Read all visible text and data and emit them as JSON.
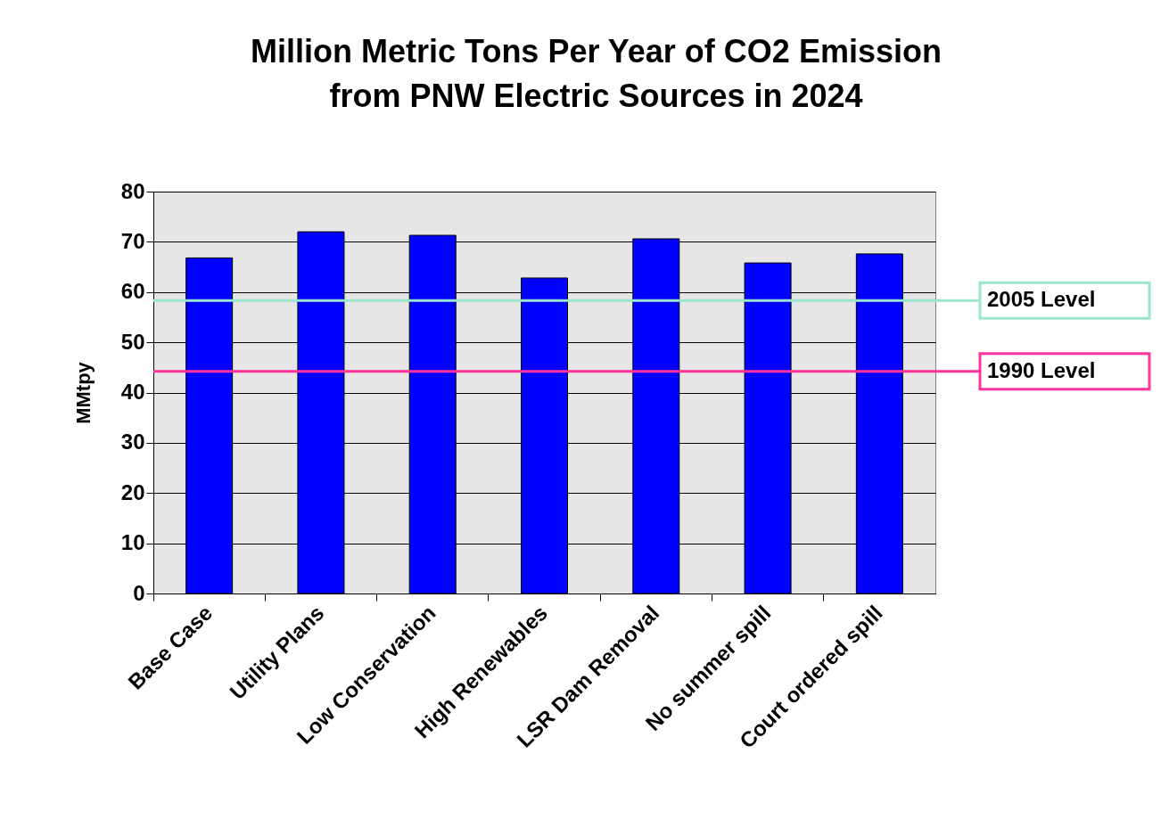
{
  "chart_data": {
    "type": "bar",
    "title": "Million Metric Tons Per Year of CO2 Emission\nfrom PNW Electric Sources in 2024",
    "ylabel": "MMtpy",
    "categories": [
      "Base Case",
      "Utility Plans",
      "Low Conservation",
      "High Renewables",
      "LSR Dam Removal",
      "No summer spill",
      "Court ordered spill"
    ],
    "values": [
      66.8,
      72,
      71.3,
      62.8,
      70.6,
      65.8,
      67.6
    ],
    "color": "#0000ff",
    "ylim": [
      0,
      80
    ],
    "yticks": [
      0,
      10,
      20,
      30,
      40,
      50,
      60,
      70,
      80
    ],
    "grid": "y",
    "ref_lines": [
      {
        "axis": "y",
        "value": 58.3,
        "label": "2005 Level",
        "color": "#99e6cc"
      },
      {
        "axis": "y",
        "value": 44.2,
        "label": "1990 Level",
        "color": "#ff3399"
      }
    ]
  }
}
